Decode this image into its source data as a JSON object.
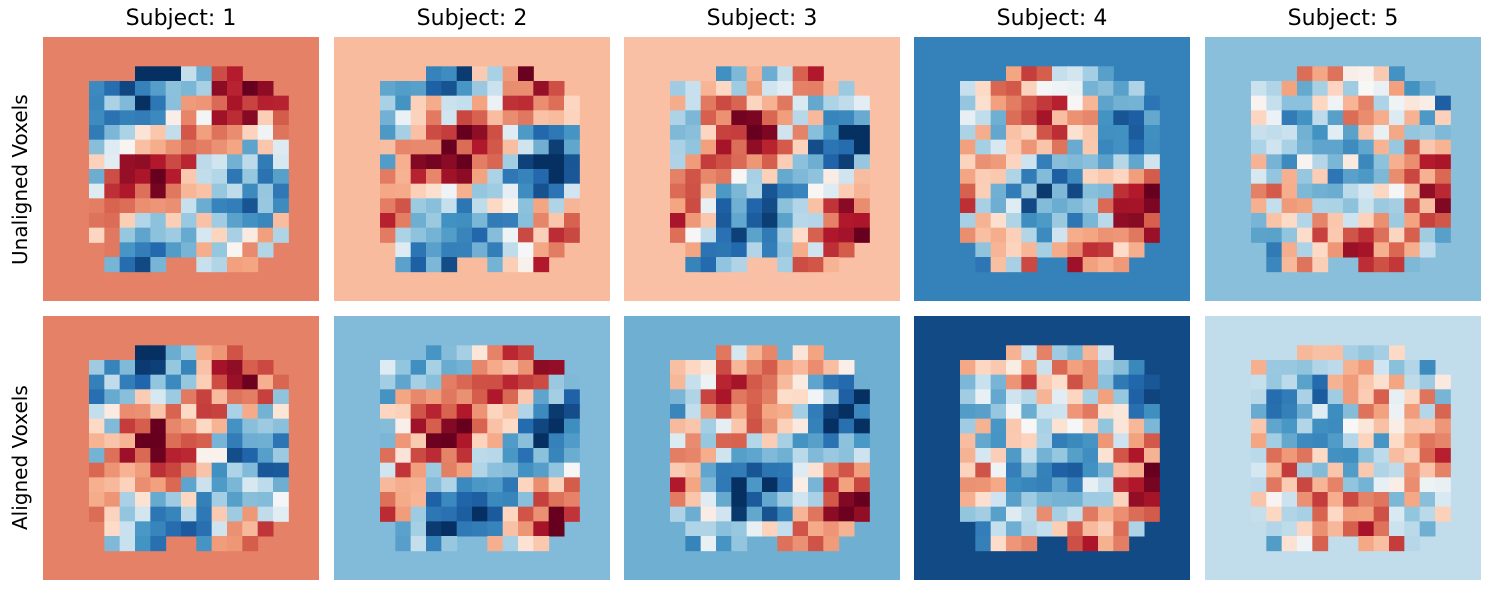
{
  "chart_data": {
    "type": "heatmap",
    "columns": [
      "Subject: 1",
      "Subject: 2",
      "Subject: 3",
      "Subject: 4",
      "Subject: 5"
    ],
    "rows": [
      "Unaligned Voxels",
      "Aligned Voxels"
    ],
    "colormap": "RdBu_r",
    "value_range": [
      -1,
      1
    ],
    "grid": false,
    "axes_visible": false,
    "background_levels": {
      "unaligned": [
        0.38,
        0.17,
        0.15,
        -0.6,
        -0.28
      ],
      "aligned": [
        0.38,
        -0.3,
        -0.36,
        -0.88,
        -0.1
      ]
    },
    "grid_size": [
      18,
      18
    ]
  },
  "colors": {
    "blue_dark": "#053061",
    "blue": "#2166ac",
    "white": "#f7f7f7",
    "red": "#b2182b",
    "red_dark": "#67001f"
  }
}
